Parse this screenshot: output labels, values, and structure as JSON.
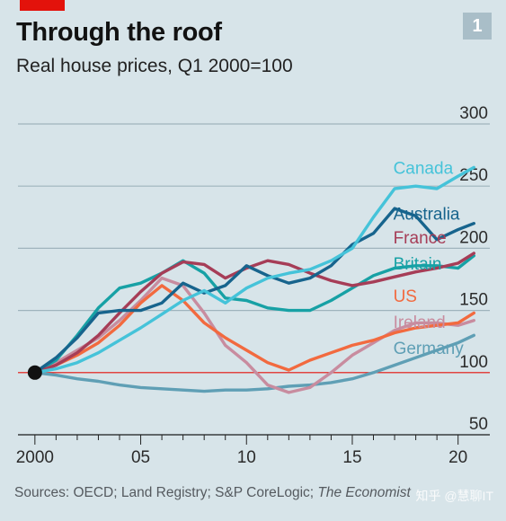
{
  "badge_number": "1",
  "chart_data": {
    "type": "line",
    "title": "Through the roof",
    "subtitle": "Real house prices, Q1 2000=100",
    "xlim": [
      1999.2,
      2021.5
    ],
    "ylim": [
      50,
      300
    ],
    "x_ticks": [
      2000,
      2005,
      2010,
      2015,
      2020
    ],
    "x_tick_labels": [
      "2000",
      "05",
      "10",
      "15",
      "20"
    ],
    "y_ticks": [
      50,
      100,
      150,
      200,
      250,
      300
    ],
    "y_tick_labels": [
      "50",
      "100",
      "150",
      "200",
      "250",
      "300"
    ],
    "grid": "horizontal",
    "baseline": 100,
    "series": [
      {
        "name": "Canada",
        "color": "#45c3d9",
        "x": [
          2000,
          2001,
          2002,
          2003,
          2004,
          2005,
          2006,
          2007,
          2008,
          2009,
          2010,
          2011,
          2012,
          2013,
          2014,
          2015,
          2016,
          2017,
          2018,
          2019,
          2020,
          2020.75
        ],
        "y": [
          100,
          103,
          108,
          116,
          126,
          136,
          147,
          158,
          166,
          156,
          168,
          176,
          180,
          183,
          190,
          200,
          225,
          248,
          250,
          248,
          258,
          265
        ]
      },
      {
        "name": "Australia",
        "color": "#17648d",
        "x": [
          2000,
          2001,
          2002,
          2003,
          2004,
          2005,
          2006,
          2007,
          2008,
          2009,
          2010,
          2011,
          2012,
          2013,
          2014,
          2015,
          2016,
          2017,
          2018,
          2019,
          2020,
          2020.75
        ],
        "y": [
          100,
          112,
          128,
          148,
          150,
          150,
          156,
          172,
          164,
          170,
          186,
          178,
          172,
          176,
          186,
          203,
          212,
          232,
          226,
          207,
          215,
          220
        ]
      },
      {
        "name": "France",
        "color": "#a63d57",
        "x": [
          2000,
          2001,
          2002,
          2003,
          2004,
          2005,
          2006,
          2007,
          2008,
          2009,
          2010,
          2011,
          2012,
          2013,
          2014,
          2015,
          2016,
          2017,
          2018,
          2019,
          2020,
          2020.75
        ],
        "y": [
          100,
          106,
          116,
          130,
          148,
          165,
          180,
          189,
          187,
          176,
          184,
          190,
          187,
          180,
          174,
          170,
          173,
          177,
          181,
          184,
          188,
          196
        ]
      },
      {
        "name": "Britain",
        "color": "#17a1a5",
        "x": [
          2000,
          2001,
          2002,
          2003,
          2004,
          2005,
          2006,
          2007,
          2008,
          2009,
          2010,
          2011,
          2012,
          2013,
          2014,
          2015,
          2016,
          2017,
          2018,
          2019,
          2020,
          2020.75
        ],
        "y": [
          100,
          110,
          130,
          152,
          168,
          172,
          180,
          190,
          180,
          160,
          158,
          152,
          150,
          150,
          158,
          168,
          178,
          184,
          186,
          186,
          184,
          194
        ]
      },
      {
        "name": "US",
        "color": "#f26a3f",
        "x": [
          2000,
          2001,
          2002,
          2003,
          2004,
          2005,
          2006,
          2007,
          2008,
          2009,
          2010,
          2011,
          2012,
          2013,
          2014,
          2015,
          2016,
          2017,
          2018,
          2019,
          2020,
          2020.75
        ],
        "y": [
          100,
          106,
          114,
          124,
          138,
          156,
          170,
          158,
          140,
          128,
          118,
          108,
          102,
          110,
          116,
          122,
          126,
          132,
          136,
          138,
          140,
          148
        ]
      },
      {
        "name": "Ireland",
        "color": "#c88c9f",
        "x": [
          2000,
          2001,
          2002,
          2003,
          2004,
          2005,
          2006,
          2007,
          2008,
          2009,
          2010,
          2011,
          2012,
          2013,
          2014,
          2015,
          2016,
          2017,
          2018,
          2019,
          2020,
          2020.75
        ],
        "y": [
          100,
          108,
          118,
          128,
          142,
          158,
          176,
          170,
          148,
          122,
          108,
          90,
          84,
          88,
          100,
          114,
          124,
          134,
          140,
          140,
          138,
          142
        ]
      },
      {
        "name": "Germany",
        "color": "#5f9fb5",
        "x": [
          2000,
          2001,
          2002,
          2003,
          2004,
          2005,
          2006,
          2007,
          2008,
          2009,
          2010,
          2011,
          2012,
          2013,
          2014,
          2015,
          2016,
          2017,
          2018,
          2019,
          2020,
          2020.75
        ],
        "y": [
          100,
          98,
          95,
          93,
          90,
          88,
          87,
          86,
          85,
          86,
          86,
          87,
          89,
          90,
          92,
          95,
          100,
          106,
          112,
          118,
          124,
          130
        ]
      }
    ],
    "label_y": {
      "Canada": 265,
      "Australia": 228,
      "France": 209,
      "Britain": 188,
      "US": 162,
      "Ireland": 141,
      "Germany": 120
    },
    "start_marker": {
      "x": 2000,
      "y": 100
    }
  },
  "source": {
    "prefix": "Sources: OECD; Land Registry; S&P CoreLogic; ",
    "publisher": "The Economist"
  },
  "watermark": "知乎 @慧聊IT"
}
